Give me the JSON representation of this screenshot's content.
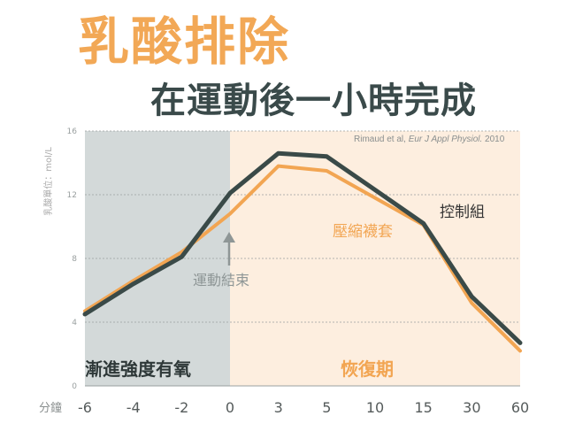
{
  "title": "乳酸排除",
  "subtitle": "在運動後一小時完成",
  "citation": {
    "prefix": "Rimaud et al, ",
    "journal": "Eur J Appl Physiol.",
    "year": " 2010"
  },
  "colors": {
    "control": "#3a4a48",
    "compression": "#f2a552",
    "phase_exercise_bg": "#d3d9d9",
    "phase_recovery_bg": "#fdeedf",
    "title": "#f2a856",
    "subtitle": "#3a4a4a"
  },
  "annotations": {
    "exercise_end": "運動結束",
    "phase_exercise": "漸進強度有氧",
    "phase_recovery": "恢復期"
  },
  "chart_data": {
    "type": "line",
    "ylabel": "乳酸單位：mol/L",
    "xlabel": "分鐘",
    "ylim": [
      0,
      16
    ],
    "yticks": [
      0,
      4,
      8,
      12,
      16
    ],
    "categories": [
      "-6",
      "-4",
      "-2",
      "0",
      "3",
      "5",
      "10",
      "15",
      "30",
      "60"
    ],
    "grid": true,
    "series": [
      {
        "name": "控制組",
        "values": [
          4.5,
          6.4,
          8.1,
          12.1,
          14.6,
          14.4,
          12.3,
          10.2,
          5.6,
          2.7
        ]
      },
      {
        "name": "壓縮襪套",
        "values": [
          4.7,
          6.6,
          8.4,
          10.8,
          13.8,
          13.5,
          11.8,
          10.1,
          5.2,
          2.2
        ]
      }
    ]
  }
}
